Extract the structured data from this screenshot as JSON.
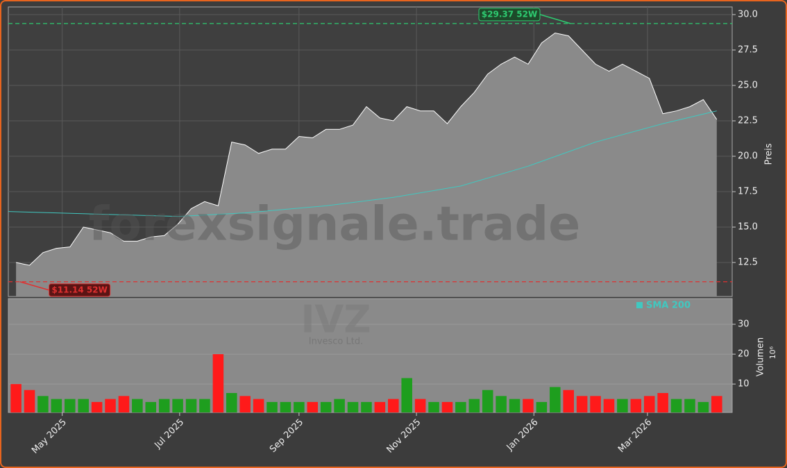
{
  "chart_data": {
    "type": "stock",
    "title": "IVZ",
    "subtitle": "Invesco Ltd.",
    "watermark": "forexsignale.trade",
    "x": [
      "2025-04-07",
      "2025-04-14",
      "2025-04-21",
      "2025-04-28",
      "2025-05-05",
      "2025-05-12",
      "2025-05-19",
      "2025-05-26",
      "2025-06-02",
      "2025-06-09",
      "2025-06-16",
      "2025-06-23",
      "2025-06-30",
      "2025-07-07",
      "2025-07-14",
      "2025-07-21",
      "2025-07-28",
      "2025-08-04",
      "2025-08-11",
      "2025-08-18",
      "2025-08-25",
      "2025-09-01",
      "2025-09-08",
      "2025-09-15",
      "2025-09-22",
      "2025-09-29",
      "2025-10-06",
      "2025-10-13",
      "2025-10-20",
      "2025-10-27",
      "2025-11-03",
      "2025-11-10",
      "2025-11-17",
      "2025-11-24",
      "2025-12-01",
      "2025-12-08",
      "2025-12-15",
      "2025-12-22",
      "2025-12-29",
      "2026-01-05",
      "2026-01-12",
      "2026-01-19",
      "2026-01-26",
      "2026-02-02",
      "2026-02-09",
      "2026-02-16",
      "2026-02-23",
      "2026-03-02",
      "2026-03-09",
      "2026-03-16",
      "2026-03-23",
      "2026-03-30",
      "2026-04-06"
    ],
    "xlim": [
      "2025-04-03",
      "2026-04-14"
    ],
    "xticks": [
      {
        "value": "2025-05-01",
        "label": "May 2025"
      },
      {
        "value": "2025-07-01",
        "label": "Jul 2025"
      },
      {
        "value": "2025-09-01",
        "label": "Sep 2025"
      },
      {
        "value": "2025-11-01",
        "label": "Nov 2025"
      },
      {
        "value": "2026-01-01",
        "label": "Jan 2026"
      },
      {
        "value": "2026-03-01",
        "label": "Mar 2026"
      }
    ],
    "ylabel": "Preis",
    "ylim": [
      10.1,
      30.54
    ],
    "yticks": [
      {
        "value": 12.5,
        "label": "12.5"
      },
      {
        "value": 15,
        "label": "15.0"
      },
      {
        "value": 17.5,
        "label": "17.5"
      },
      {
        "value": 20,
        "label": "20.0"
      },
      {
        "value": 22.5,
        "label": "22.5"
      },
      {
        "value": 25,
        "label": "25.0"
      },
      {
        "value": 27.5,
        "label": "27.5"
      },
      {
        "value": 30,
        "label": "30.0"
      }
    ],
    "grid": true,
    "series": [
      {
        "name": "IVZ",
        "color": "#ffffff",
        "values": [
          12.5,
          12.3,
          13.2,
          13.5,
          13.6,
          15.0,
          14.8,
          14.6,
          14.0,
          14.0,
          14.3,
          14.4,
          15.2,
          16.3,
          16.8,
          16.5,
          21.0,
          20.8,
          20.2,
          20.5,
          20.5,
          21.4,
          21.3,
          21.9,
          21.9,
          22.2,
          23.5,
          22.7,
          22.5,
          23.5,
          23.2,
          23.2,
          22.3,
          23.5,
          24.5,
          25.8,
          26.5,
          27.0,
          26.5,
          28.0,
          28.7,
          28.5,
          27.5,
          26.5,
          26.0,
          26.5,
          26.0,
          25.5,
          23.0,
          23.2,
          23.5,
          24.0,
          22.6
        ]
      },
      {
        "name": "SMA 200",
        "color": "#40c8c0",
        "x": [
          "2025-04-03",
          "2025-06-30",
          "2025-08-04",
          "2025-09-15",
          "2025-10-20",
          "2025-11-24",
          "2025-12-29",
          "2026-02-02",
          "2026-03-09",
          "2026-04-06"
        ],
        "values": [
          16.1,
          15.75,
          16.0,
          16.5,
          17.1,
          17.9,
          19.3,
          21.0,
          22.3,
          23.2
        ]
      }
    ],
    "annotations": [
      {
        "text": "$29.37 52W",
        "value": 29.37,
        "date": "2026-01-20",
        "color": "#2ecc71"
      },
      {
        "text": "$11.14 52W",
        "value": 11.14,
        "date": "2025-04-09",
        "color": "#e03030"
      }
    ],
    "volume": {
      "ylabel": "Volumen",
      "unit_label": "10⁶",
      "ylim": [
        0.5,
        38.6
      ],
      "yticks": [
        10,
        20,
        30
      ],
      "up_color": "#1e9e1e",
      "down_color": "#ff1a1a",
      "values": [
        10,
        8,
        6,
        5,
        5,
        5,
        4,
        5,
        6,
        5,
        4,
        5,
        5,
        5,
        5,
        20,
        7,
        6,
        5,
        4,
        4,
        4,
        4,
        4,
        5,
        4,
        4,
        4,
        5,
        12,
        5,
        4,
        4,
        4,
        5,
        8,
        6,
        5,
        5,
        4,
        9,
        8,
        6,
        6,
        5,
        5,
        5,
        6,
        7,
        5,
        5,
        4,
        6
      ]
    }
  }
}
